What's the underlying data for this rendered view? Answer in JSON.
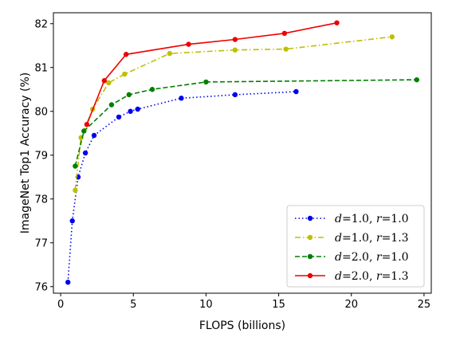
{
  "chart_data": {
    "type": "line",
    "xlabel": "FLOPS (billions)",
    "ylabel": "ImageNet Top1 Accuracy (%)",
    "xlim": [
      -0.5,
      25.5
    ],
    "ylim": [
      75.85,
      82.25
    ],
    "xticks": [
      0,
      5,
      10,
      15,
      20,
      25
    ],
    "yticks": [
      76,
      77,
      78,
      79,
      80,
      81,
      82
    ],
    "grid": false,
    "legend_position": "lower-right",
    "series": [
      {
        "name_d": "d",
        "name_d_val": "=1.0, ",
        "name_r": "r",
        "name_r_val": "=1.0",
        "color": "#0000ee",
        "dash": "dotted",
        "x": [
          0.5,
          0.8,
          1.2,
          1.7,
          2.3,
          4.0,
          4.8,
          5.3,
          8.3,
          12.0,
          16.2
        ],
        "y": [
          76.1,
          77.5,
          78.5,
          79.05,
          79.45,
          79.87,
          80.0,
          80.05,
          80.3,
          80.38,
          80.45
        ]
      },
      {
        "name_d": "d",
        "name_d_val": "=1.0, ",
        "name_r": "r",
        "name_r_val": "=1.3",
        "color": "#bfbf00",
        "dash": "dashdot",
        "x": [
          1.0,
          1.4,
          2.2,
          3.3,
          4.4,
          7.5,
          12.0,
          15.5,
          22.8
        ],
        "y": [
          78.2,
          79.4,
          80.05,
          80.65,
          80.85,
          81.32,
          81.4,
          81.42,
          81.7
        ]
      },
      {
        "name_d": "d",
        "name_d_val": "=2.0, ",
        "name_r": "r",
        "name_r_val": "=1.0",
        "color": "#008000",
        "dash": "dashed",
        "x": [
          1.0,
          1.6,
          3.5,
          4.7,
          6.3,
          10.0,
          24.5
        ],
        "y": [
          78.75,
          79.55,
          80.15,
          80.38,
          80.5,
          80.67,
          80.72
        ]
      },
      {
        "name_d": "d",
        "name_d_val": "=2.0, ",
        "name_r": "r",
        "name_r_val": "=1.3",
        "color": "#ee0000",
        "dash": "solid",
        "x": [
          1.8,
          3.0,
          4.5,
          8.8,
          12.0,
          15.4,
          19.0
        ],
        "y": [
          79.7,
          80.7,
          81.3,
          81.53,
          81.64,
          81.78,
          82.02
        ]
      }
    ]
  }
}
